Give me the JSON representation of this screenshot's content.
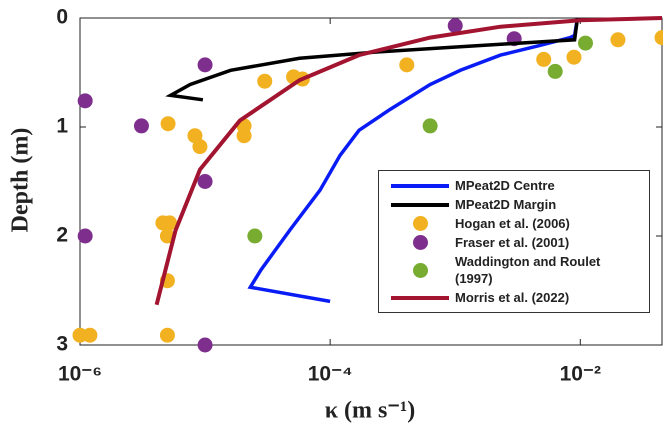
{
  "chart_data": {
    "type": "scatter",
    "xlabel": "κ (m s⁻¹)",
    "ylabel": "Depth (m)",
    "xscale": "log",
    "xlim": [
      1e-06,
      0.045
    ],
    "ylim": [
      3,
      0
    ],
    "xticks": [
      {
        "value": 1e-06,
        "label": "10⁻⁶"
      },
      {
        "value": 0.0001,
        "label": "10⁻⁴"
      },
      {
        "value": 0.01,
        "label": "10⁻²"
      }
    ],
    "yticks": [
      0,
      1,
      2,
      3
    ],
    "legend": "lower right",
    "series": [
      {
        "name": "MPeat2D Centre",
        "color": "#0a1cf5",
        "style": "line",
        "x": [
          0.0001,
          2.3e-05,
          2.8e-05,
          4.8e-05,
          8.3e-05,
          0.00012,
          0.00017,
          0.0003,
          0.00063,
          0.0011,
          0.0023,
          0.0048,
          0.0083,
          0.009,
          0.0095
        ],
        "values": [
          2.6,
          2.47,
          2.31,
          1.94,
          1.58,
          1.26,
          1.03,
          0.84,
          0.61,
          0.48,
          0.34,
          0.25,
          0.18,
          0.16,
          0
        ]
      },
      {
        "name": "MPeat2D Margin",
        "color": "#000000",
        "style": "line",
        "x": [
          9.6e-06,
          5.3e-06,
          7.6e-06,
          1.6e-05,
          5.7e-05,
          0.00025,
          0.00091,
          0.0033,
          0.009,
          0.0095
        ],
        "values": [
          0.75,
          0.71,
          0.61,
          0.48,
          0.37,
          0.31,
          0.27,
          0.23,
          0.2,
          0
        ]
      },
      {
        "name": "Hogan et al. (2006)",
        "color": "#f2b120",
        "style": "marker",
        "x": [
          5.06e-06,
          8.3e-06,
          9.1e-06,
          2.05e-05,
          2.05e-05,
          4.6e-06,
          5.2e-06,
          5e-06,
          5e-06,
          1e-06,
          1.2e-06,
          5e-06,
          3e-05,
          5.1e-05,
          6e-05,
          0.00041,
          0.0051,
          0.0089,
          0.02,
          0.045
        ],
        "values": [
          0.97,
          1.08,
          1.18,
          0.99,
          1.08,
          1.88,
          1.88,
          2.0,
          2.41,
          2.91,
          2.91,
          2.91,
          0.58,
          0.54,
          0.56,
          0.43,
          0.38,
          0.36,
          0.2,
          0.18
        ]
      },
      {
        "name": "Fraser et al. (2001)",
        "color": "#7e2f8e",
        "style": "marker",
        "x": [
          1.1e-06,
          3.1e-06,
          1e-05,
          1e-05,
          1.1e-06,
          1e-05,
          0.001,
          0.00296
        ],
        "values": [
          0.76,
          0.99,
          0.43,
          1.5,
          2.0,
          3.0,
          0.07,
          0.19
        ]
      },
      {
        "name": "Waddington and Roulet (1997)",
        "color": "#77ac30",
        "style": "marker",
        "x": [
          2.5e-05,
          0.00063,
          0.0063,
          0.011
        ],
        "values": [
          2.0,
          0.99,
          0.49,
          0.23
        ]
      },
      {
        "name": "Morris et al. (2022)",
        "color": "#a2142f",
        "style": "line",
        "x": [
          4.1e-06,
          5.8e-06,
          9.1e-06,
          1.9e-05,
          5.7e-05,
          0.00017,
          0.00063,
          0.0023,
          0.01,
          0.045
        ],
        "values": [
          2.63,
          1.95,
          1.39,
          0.94,
          0.57,
          0.34,
          0.18,
          0.08,
          0.02,
          0
        ]
      }
    ]
  }
}
